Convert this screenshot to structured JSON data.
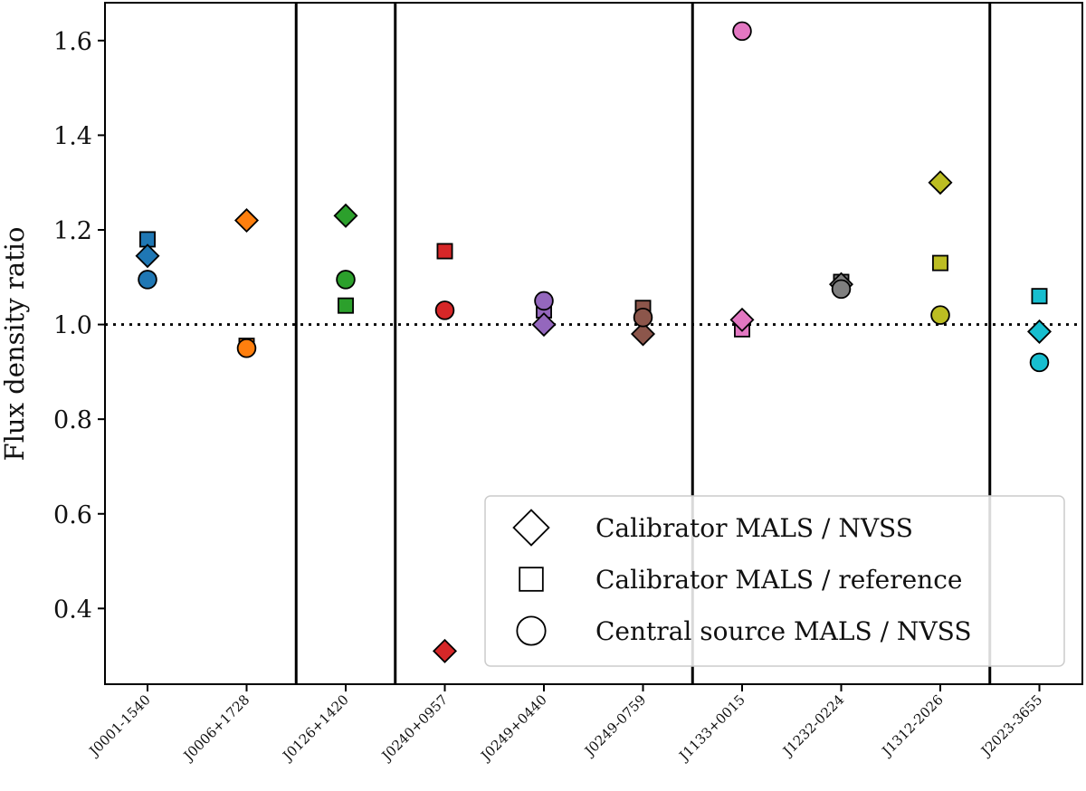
{
  "chart_data": {
    "type": "scatter",
    "xlabel": "",
    "ylabel": "Flux density ratio",
    "ylim": [
      0.24,
      1.68
    ],
    "yticks": [
      "0.4",
      "0.6",
      "0.8",
      "1.0",
      "1.2",
      "1.4",
      "1.6"
    ],
    "categories": [
      "J0001-1540",
      "J0006+1728",
      "J0126+1420",
      "J0240+0957",
      "J0249+0440",
      "J0249-0759",
      "J1133+0015",
      "J1232-0224",
      "J1312-2026",
      "J2023-3655"
    ],
    "colors": [
      "#1f77b4",
      "#ff7f0e",
      "#2ca02c",
      "#d62728",
      "#9467bd",
      "#8c564b",
      "#e377c2",
      "#7f7f7f",
      "#bcbd22",
      "#17becf"
    ],
    "reference_line": 1.0,
    "group_separators_after": [
      1,
      2,
      5,
      8
    ],
    "series": [
      {
        "name": "Calibrator MALS / NVSS",
        "marker": "diamond",
        "values": [
          1.145,
          1.22,
          1.23,
          0.31,
          1.0,
          0.98,
          1.01,
          1.085,
          1.3,
          0.985
        ]
      },
      {
        "name": "Calibrator MALS / reference",
        "marker": "square",
        "values": [
          1.18,
          0.955,
          1.04,
          1.155,
          1.03,
          1.035,
          0.99,
          1.09,
          1.13,
          1.06
        ]
      },
      {
        "name": "Central source MALS / NVSS",
        "marker": "circle",
        "values": [
          1.095,
          0.95,
          1.095,
          1.03,
          1.05,
          1.015,
          1.62,
          1.075,
          1.02,
          0.92
        ]
      }
    ],
    "legend_position": "lower-right",
    "grid": false
  }
}
